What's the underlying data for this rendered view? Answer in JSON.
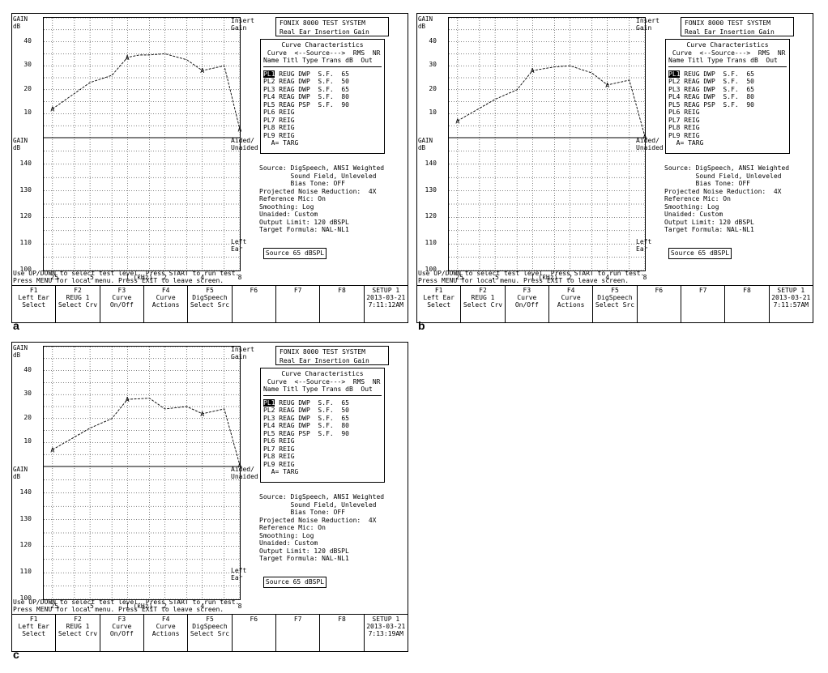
{
  "panels": [
    {
      "label": "a",
      "clock": "7:11:12AM",
      "curve": [
        [
          0.25,
          12
        ],
        [
          0.5,
          23
        ],
        [
          0.75,
          26
        ],
        [
          1,
          33.5
        ],
        [
          1.25,
          34.5
        ],
        [
          1.5,
          34.5
        ],
        [
          2,
          35
        ],
        [
          3,
          32.5
        ],
        [
          4,
          28
        ],
        [
          6,
          30
        ],
        [
          8,
          3.5
        ]
      ],
      "f2": [
        "F2",
        "REUG 1",
        "Select Crv"
      ]
    },
    {
      "label": "b",
      "clock": "7:11:57AM",
      "curve": [
        [
          0.25,
          7
        ],
        [
          0.5,
          16
        ],
        [
          0.75,
          20
        ],
        [
          1,
          28
        ],
        [
          1.5,
          29.5
        ],
        [
          2,
          30
        ],
        [
          3,
          27
        ],
        [
          4,
          22
        ],
        [
          6,
          24
        ],
        [
          8,
          0.5
        ]
      ],
      "f2": [
        "F2",
        "REUG 1",
        "Select Crv"
      ]
    },
    {
      "label": "c",
      "clock": "7:13:19AM",
      "curve": [
        [
          0.25,
          7
        ],
        [
          0.5,
          16
        ],
        [
          0.75,
          20
        ],
        [
          1,
          28
        ],
        [
          1.5,
          28.5
        ],
        [
          2,
          24
        ],
        [
          3,
          25
        ],
        [
          4,
          22
        ],
        [
          6,
          24
        ],
        [
          8,
          0.5
        ]
      ],
      "f2": [
        "F2",
        "REUG 1",
        "Select Crv"
      ]
    }
  ],
  "shared": {
    "gain_title": "GAIN",
    "db": "dB",
    "top_yticks": [
      "40",
      "30",
      "20",
      "10"
    ],
    "bottom_yticks": [
      "140",
      "130",
      "120",
      "110",
      "100"
    ],
    "xticks": [
      ".25",
      ".5",
      "1",
      "2",
      "4",
      "8"
    ],
    "x_unit": "(kHz)",
    "insert_gain": [
      "Insert",
      "Gain"
    ],
    "aided": [
      "Aided/",
      "Unaided"
    ],
    "left_ear": [
      "Left",
      "Ear"
    ],
    "title_box": [
      "FONIX 8000 TEST SYSTEM",
      "Real Ear Insertion Gain"
    ],
    "cc_title": "Curve Characteristics",
    "cc_head1": " Curve  <--Source--->  RMS  NR",
    "cc_head2": "Name Titl Type Trans dB  Out",
    "cc_rows": [
      [
        "PL1",
        " REUG DWP  S.F.  65"
      ],
      [
        "PL2",
        " REAG DWP  S.F.  50"
      ],
      [
        "PL3",
        " REAG DWP  S.F.  65"
      ],
      [
        "PL4",
        " REAG DWP  S.F.  80"
      ],
      [
        "PL5",
        " REAG PSP  S.F.  90"
      ],
      [
        "PL6",
        " REIG"
      ],
      [
        "PL7",
        " REIG"
      ],
      [
        "PL8",
        " REIG"
      ],
      [
        "PL9",
        " REIG"
      ],
      [
        "  A=",
        " TARG"
      ]
    ],
    "info_lines": [
      "Source: DigSpeech, ANSI Weighted",
      "        Sound Field, Unleveled",
      "        Bias Tone: OFF",
      "Projected Noise Reduction:  4X",
      "Reference Mic: On",
      "Smoothing: Log",
      "Unaided: Custom",
      "Output Limit: 120 dBSPL",
      "Target Formula: NAL-NL1"
    ],
    "source_box": "Source  65 dBSPL",
    "msg1": "Use UP/DOWN to select test level. Press START to run test.",
    "msg2": "Press MENU for local menu. Press EXIT to leave screen.",
    "fkeys": [
      [
        "F1",
        "Left Ear",
        "Select"
      ],
      [
        "F2",
        "REUG 1",
        "Select Crv"
      ],
      [
        "F3",
        "Curve",
        "On/Off"
      ],
      [
        "F4",
        "Curve",
        "Actions"
      ],
      [
        "F5",
        "DigSpeech",
        "Select Src"
      ],
      [
        "F6",
        "",
        ""
      ],
      [
        "F7",
        "",
        ""
      ],
      [
        "F8",
        "",
        ""
      ],
      [
        "SETUP 1",
        "2013-03-21",
        ""
      ]
    ],
    "marker": "A"
  }
}
